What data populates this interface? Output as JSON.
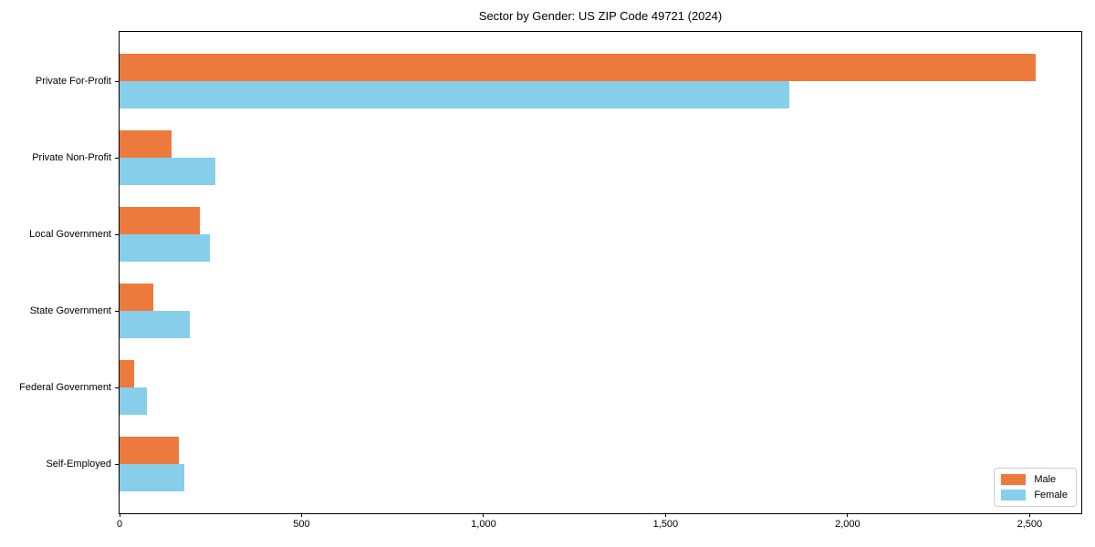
{
  "title": "Sector by Gender: US ZIP Code 49721 (2024)",
  "chart_data": {
    "type": "bar",
    "orientation": "horizontal",
    "title": "Sector by Gender: US ZIP Code 49721 (2024)",
    "categories": [
      "Private For-Profit",
      "Private Non-Profit",
      "Local Government",
      "State Government",
      "Federal Government",
      "Self-Employed"
    ],
    "series": [
      {
        "name": "Male",
        "color": "#EC7A3D",
        "values": [
          2516,
          142,
          221,
          93,
          39,
          163
        ]
      },
      {
        "name": "Female",
        "color": "#87CEEB",
        "values": [
          1839,
          263,
          248,
          193,
          76,
          178
        ]
      }
    ],
    "xlabel": "",
    "ylabel": "",
    "xlim": [
      0,
      2642
    ],
    "xticks": [
      0,
      500,
      1000,
      1500,
      2000,
      2500
    ],
    "xtick_labels": [
      "0",
      "500",
      "1,000",
      "1,500",
      "2,000",
      "2,500"
    ],
    "grid": false,
    "legend_position": "lower right",
    "legend_labels": [
      "Male",
      "Female"
    ]
  }
}
